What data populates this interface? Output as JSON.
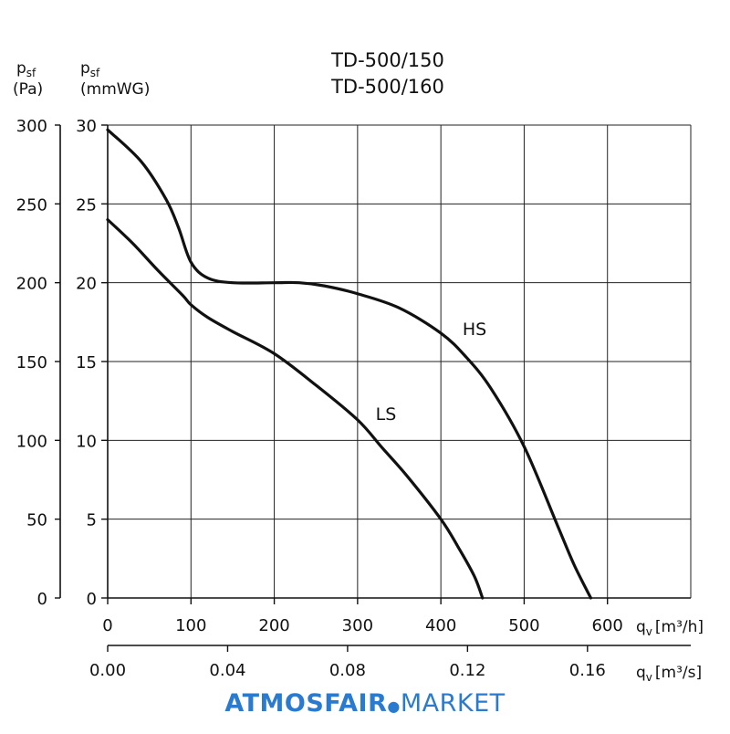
{
  "chart_data": {
    "type": "line",
    "title_lines": [
      "TD-500/150",
      "TD-500/160"
    ],
    "y_left": {
      "symbol": "p",
      "subscript": "sf",
      "unit": "(Pa)",
      "ticks": [
        "0",
        "50",
        "100",
        "150",
        "200",
        "250",
        "300"
      ],
      "range": [
        0,
        300
      ]
    },
    "y_inner": {
      "symbol": "p",
      "subscript": "sf",
      "unit": "(mmWG)",
      "ticks": [
        "0",
        "5",
        "10",
        "15",
        "20",
        "25",
        "30"
      ],
      "range": [
        0,
        30
      ]
    },
    "x_primary": {
      "symbol": "q",
      "subscript": "v",
      "unit": "[m³/h]",
      "ticks": [
        "0",
        "100",
        "200",
        "300",
        "400",
        "500",
        "600"
      ],
      "range": [
        0,
        700
      ]
    },
    "x_secondary": {
      "symbol": "q",
      "subscript": "v",
      "unit": "[m³/s]",
      "ticks": [
        "0.00",
        "0.04",
        "0.08",
        "0.12",
        "0.16"
      ],
      "range": [
        0,
        0.1944
      ]
    },
    "grid": true,
    "series": [
      {
        "name": "HS",
        "x": [
          0,
          40,
          70,
          85,
          100,
          120,
          150,
          200,
          230,
          260,
          300,
          350,
          400,
          430,
          460,
          500,
          540,
          560,
          580
        ],
        "y": [
          29.7,
          27.7,
          25.3,
          23.5,
          21.3,
          20.3,
          20.0,
          20.0,
          20.0,
          19.8,
          19.3,
          18.4,
          16.8,
          15.3,
          13.3,
          9.6,
          4.6,
          2.1,
          0
        ]
      },
      {
        "name": "LS",
        "x": [
          0,
          30,
          60,
          90,
          100,
          120,
          150,
          200,
          250,
          300,
          330,
          360,
          400,
          420,
          440,
          450
        ],
        "y": [
          24.0,
          22.5,
          20.8,
          19.2,
          18.6,
          17.8,
          16.9,
          15.5,
          13.5,
          11.3,
          9.5,
          7.7,
          5.0,
          3.3,
          1.4,
          0
        ]
      }
    ]
  },
  "brand": {
    "bold": "ATMOSFAIR",
    "dot": "●",
    "light": "MARKET"
  }
}
